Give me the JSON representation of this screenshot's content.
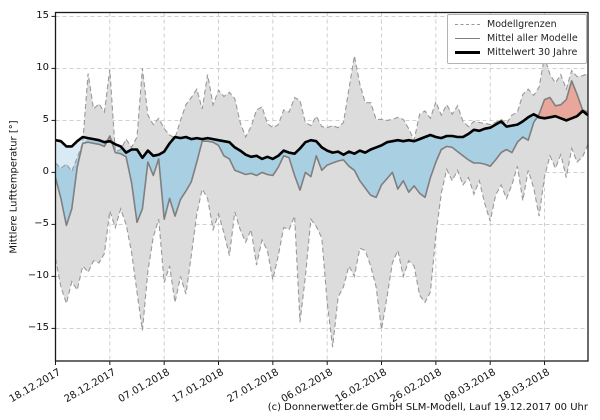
{
  "figure": {
    "caption": "(c) Donnerwetter.de GmbH SLM-Modell, Lauf 19.12.2017 00 Uhr"
  },
  "axes": {
    "ylabel": "Mittlere Lufttemperatur [°]",
    "ytick_labels": [
      "15",
      "10",
      "5",
      "0",
      "−5",
      "−10",
      "−15"
    ]
  },
  "legend": {
    "items": [
      {
        "label": "Modellgrenzen",
        "style": "dashed"
      },
      {
        "label": "Mittel aller Modelle",
        "style": "solid-gray"
      },
      {
        "label": "Mittelwert 30 Jahre",
        "style": "solid-black"
      }
    ]
  },
  "chart_data": {
    "type": "line",
    "title": "",
    "xlabel": "",
    "ylabel": "Mittlere Lufttemperatur [°]",
    "ylim": [
      -18.1,
      15.4
    ],
    "yticks": [
      15,
      10,
      5,
      0,
      -5,
      -10,
      -15
    ],
    "grid": true,
    "legend_position": "upper right",
    "x_unit": "days since 18.12.2017, daily resolution",
    "xtick_day_index": [
      0,
      10,
      20,
      30,
      40,
      50,
      60,
      70,
      80,
      90
    ],
    "xtick_labels": [
      "18.12.2017",
      "28.12.2017",
      "07.01.2018",
      "17.01.2018",
      "27.01.2018",
      "06.02.2018",
      "16.02.2018",
      "26.02.2018",
      "08.03.2018",
      "18.03.2018"
    ],
    "colors": {
      "band": "#dcdcdc",
      "bounds": "#999999",
      "mean": "#7f7f7f",
      "mean30": "#000000",
      "below_fill": "#a9cfe3",
      "below_fill_pale": "#d9eaf5",
      "above_fill": "#e8a79a",
      "above_fill_pale": "#f6ddd6",
      "grid": "#c9c9c9"
    },
    "series": [
      {
        "name": "Modellgrenzen (obere Grenze)",
        "role": "upper",
        "style": "dashed",
        "values": [
          0.9,
          0.4,
          0.8,
          0.1,
          1.4,
          2.8,
          9.5,
          6.1,
          6.6,
          5.8,
          9.9,
          2.0,
          2.2,
          3.2,
          2.4,
          3.4,
          10.0,
          5.5,
          4.6,
          5.2,
          4.2,
          3.6,
          3.3,
          5.0,
          6.5,
          7.2,
          8.0,
          6.1,
          9.4,
          6.5,
          7.9,
          7.3,
          7.7,
          7.1,
          4.8,
          3.4,
          4.4,
          6.0,
          6.3,
          4.7,
          4.3,
          4.6,
          6.0,
          5.8,
          7.2,
          6.9,
          4.8,
          4.5,
          5.4,
          4.4,
          4.3,
          4.5,
          4.3,
          4.8,
          8.0,
          11.2,
          8.5,
          6.7,
          6.7,
          5.1,
          5.1,
          5.0,
          5.1,
          5.3,
          5.1,
          4.2,
          3.1,
          5.6,
          5.9,
          5.2,
          6.8,
          5.5,
          6.5,
          5.6,
          6.4,
          4.9,
          4.4,
          4.9,
          4.8,
          4.7,
          4.6,
          4.8,
          5.1,
          4.7,
          5.5,
          5.8,
          7.5,
          8.0,
          7.4,
          8.2,
          11.1,
          9.4,
          8.6,
          9.4,
          8.0,
          9.8,
          9.2,
          9.3,
          9.5
        ]
      },
      {
        "name": "Modellgrenzen (untere Grenze)",
        "role": "lower",
        "style": "dashed",
        "values": [
          -8.3,
          -11.0,
          -12.6,
          -10.5,
          -11.3,
          -9.0,
          -9.6,
          -8.5,
          -8.7,
          -7.8,
          -3.7,
          -5.3,
          -3.5,
          -5.0,
          -7.7,
          -11.5,
          -15.2,
          -9.5,
          -6.2,
          -4.5,
          -10.6,
          -9.0,
          -12.5,
          -10.0,
          -11.7,
          -8.0,
          -4.0,
          -1.6,
          -2.5,
          -5.5,
          -4.0,
          -5.8,
          -8.0,
          -3.8,
          -5.5,
          -6.7,
          -5.5,
          -8.9,
          -6.5,
          -7.5,
          -10.3,
          -8.0,
          -5.3,
          -5.5,
          -4.2,
          -14.4,
          -10.0,
          -4.5,
          -5.2,
          -6.3,
          -12.5,
          -16.8,
          -12.0,
          -11.0,
          -9.0,
          -10.0,
          -7.3,
          -7.5,
          -9.0,
          -11.0,
          -15.1,
          -12.0,
          -8.7,
          -7.5,
          -10.0,
          -8.5,
          -9.0,
          -11.8,
          -12.5,
          -11.5,
          -6.0,
          -2.0,
          0.3,
          -0.8,
          0.2,
          -1.2,
          -0.5,
          -2.1,
          -0.8,
          -3.0,
          -4.7,
          -2.2,
          -1.2,
          -2.5,
          -1.2,
          0.6,
          -2.7,
          0.2,
          -1.5,
          -4.2,
          -0.4,
          1.6,
          0.4,
          1.7,
          -0.5,
          2.3,
          1.0,
          1.5,
          2.7
        ]
      },
      {
        "name": "Mittel aller Modelle",
        "role": "mean",
        "style": "solid",
        "values": [
          -0.5,
          -2.5,
          -5.1,
          -3.5,
          0.5,
          2.8,
          2.9,
          2.8,
          2.7,
          2.5,
          3.5,
          1.9,
          1.8,
          1.5,
          -1.0,
          -4.8,
          -3.5,
          1.0,
          -0.3,
          1.3,
          -4.5,
          -2.5,
          -4.2,
          -2.6,
          -1.8,
          -0.9,
          1.0,
          3.0,
          3.0,
          2.9,
          2.6,
          1.6,
          1.3,
          0.2,
          0.0,
          -0.2,
          -0.1,
          -0.3,
          0.0,
          -0.2,
          -0.3,
          0.5,
          1.6,
          1.4,
          -0.3,
          -1.7,
          0.0,
          -0.4,
          1.6,
          0.2,
          0.7,
          0.9,
          1.1,
          1.2,
          0.6,
          0.2,
          -0.8,
          -1.5,
          -2.2,
          -2.4,
          -1.2,
          -0.6,
          0.0,
          -1.6,
          -0.8,
          -1.9,
          -1.3,
          -2.0,
          -2.4,
          -0.5,
          1.0,
          2.2,
          2.5,
          2.4,
          2.0,
          1.6,
          1.2,
          0.9,
          0.9,
          0.8,
          0.6,
          1.2,
          1.9,
          2.2,
          1.9,
          2.9,
          3.4,
          3.1,
          4.8,
          5.6,
          7.0,
          7.2,
          6.4,
          6.5,
          7.0,
          8.8,
          7.5,
          6.0,
          5.8
        ]
      },
      {
        "name": "Mittelwert 30 Jahre",
        "role": "mean30",
        "style": "solid-thick",
        "values": [
          3.1,
          3.0,
          2.5,
          2.5,
          3.0,
          3.4,
          3.3,
          3.2,
          3.1,
          2.9,
          3.0,
          2.7,
          2.5,
          1.9,
          2.2,
          2.2,
          1.4,
          2.1,
          1.6,
          1.7,
          2.0,
          2.8,
          3.4,
          3.3,
          3.4,
          3.2,
          3.3,
          3.2,
          3.3,
          3.2,
          3.1,
          3.0,
          2.9,
          2.4,
          2.1,
          1.7,
          1.5,
          1.6,
          1.3,
          1.5,
          1.3,
          1.6,
          2.1,
          1.9,
          1.8,
          2.3,
          2.9,
          3.1,
          3.0,
          2.4,
          2.1,
          1.9,
          2.0,
          1.7,
          2.0,
          1.8,
          2.1,
          1.9,
          2.2,
          2.4,
          2.6,
          2.9,
          3.0,
          3.1,
          3.0,
          3.1,
          3.0,
          3.2,
          3.4,
          3.6,
          3.4,
          3.3,
          3.5,
          3.5,
          3.4,
          3.4,
          3.7,
          4.1,
          4.0,
          4.2,
          4.3,
          4.6,
          4.9,
          4.4,
          4.5,
          4.6,
          4.9,
          5.3,
          5.6,
          5.3,
          5.2,
          5.3,
          5.4,
          5.2,
          5.0,
          5.2,
          5.4,
          5.9,
          5.5
        ]
      }
    ]
  }
}
